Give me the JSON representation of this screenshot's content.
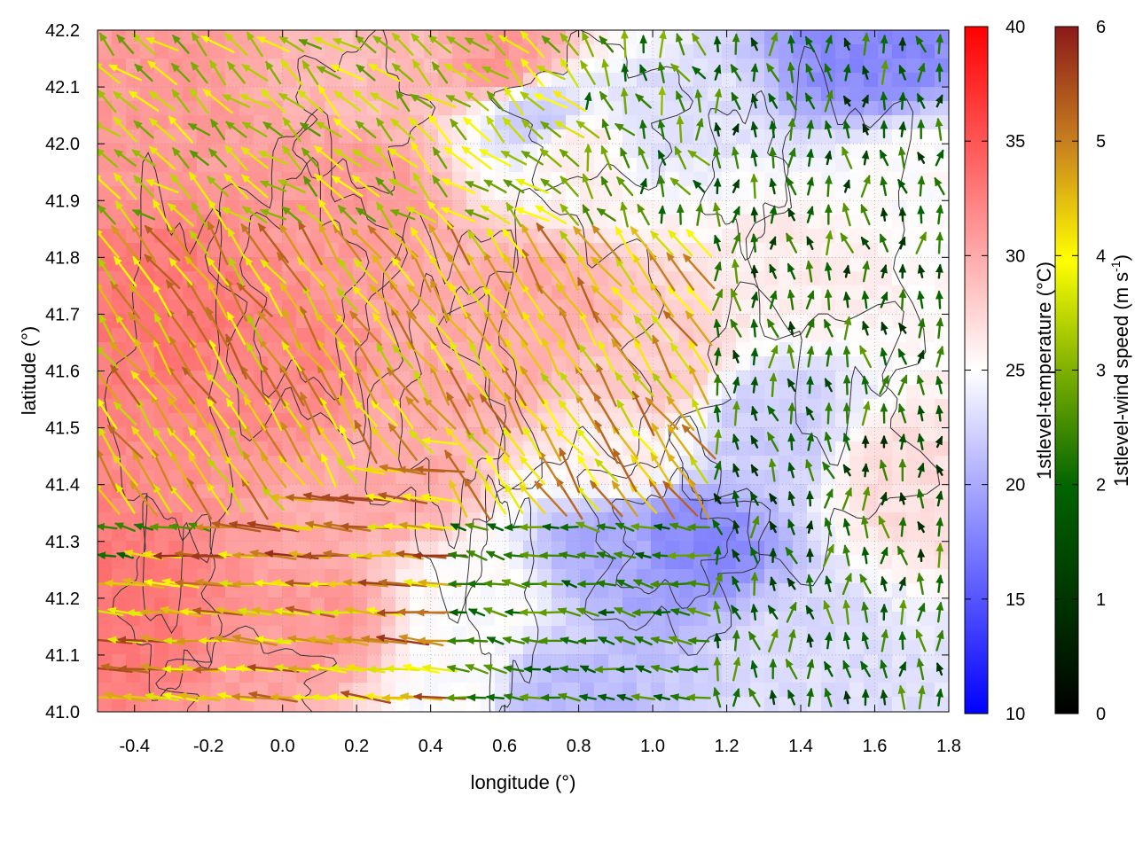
{
  "chart_data": {
    "type": "heatmap",
    "title": "",
    "xlabel": "longitude (°)",
    "ylabel": "latitude (°)",
    "xlim": [
      -0.5,
      1.8
    ],
    "ylim": [
      41.0,
      42.2
    ],
    "x_ticks": [
      "-0.4",
      "-0.2",
      "0.0",
      "0.2",
      "0.4",
      "0.6",
      "0.8",
      "1.0",
      "1.2",
      "1.4",
      "1.6",
      "1.8"
    ],
    "x_tick_values": [
      -0.4,
      -0.2,
      0.0,
      0.2,
      0.4,
      0.6,
      0.8,
      1.0,
      1.2,
      1.4,
      1.6,
      1.8
    ],
    "y_ticks": [
      "41.0",
      "41.1",
      "41.2",
      "41.3",
      "41.4",
      "41.5",
      "41.6",
      "41.7",
      "41.8",
      "41.9",
      "42.0",
      "42.1",
      "42.2"
    ],
    "y_tick_values": [
      41.0,
      41.1,
      41.2,
      41.3,
      41.4,
      41.5,
      41.6,
      41.7,
      41.8,
      41.9,
      42.0,
      42.1,
      42.2
    ],
    "grid": true,
    "layers": {
      "temperature_field": {
        "label": "1stlevel-temperature (°C)",
        "range": [
          10,
          40
        ],
        "ticks": [
          "10",
          "15",
          "20",
          "25",
          "30",
          "35",
          "40"
        ],
        "tick_values": [
          10,
          15,
          20,
          25,
          30,
          35,
          40
        ],
        "colors": [
          "#0000ff",
          "#ffffff",
          "#ff0000"
        ],
        "control_points": [
          {
            "lon": -0.45,
            "lat": 41.2,
            "temp": 33
          },
          {
            "lon": -0.3,
            "lat": 41.7,
            "temp": 33
          },
          {
            "lon": 0.0,
            "lat": 41.6,
            "temp": 32
          },
          {
            "lon": 0.2,
            "lat": 41.9,
            "temp": 31
          },
          {
            "lon": 0.5,
            "lat": 41.6,
            "temp": 30
          },
          {
            "lon": 0.7,
            "lat": 41.7,
            "temp": 30
          },
          {
            "lon": 0.6,
            "lat": 42.15,
            "temp": 31
          },
          {
            "lon": 0.8,
            "lat": 42.0,
            "temp": 26
          },
          {
            "lon": 1.0,
            "lat": 42.05,
            "temp": 23
          },
          {
            "lon": 0.7,
            "lat": 42.05,
            "temp": 22
          },
          {
            "lon": 1.6,
            "lat": 42.15,
            "temp": 18
          },
          {
            "lon": 1.7,
            "lat": 41.95,
            "temp": 25
          },
          {
            "lon": 1.4,
            "lat": 41.8,
            "temp": 26
          },
          {
            "lon": 1.3,
            "lat": 41.5,
            "temp": 22
          },
          {
            "lon": 1.1,
            "lat": 41.3,
            "temp": 18
          },
          {
            "lon": 0.9,
            "lat": 41.3,
            "temp": 20
          },
          {
            "lon": 0.5,
            "lat": 41.2,
            "temp": 25
          },
          {
            "lon": 0.45,
            "lat": 41.05,
            "temp": 25
          },
          {
            "lon": 0.75,
            "lat": 41.02,
            "temp": 21
          },
          {
            "lon": 1.4,
            "lat": 41.1,
            "temp": 23
          },
          {
            "lon": 1.7,
            "lat": 41.4,
            "temp": 27
          },
          {
            "lon": 1.0,
            "lat": 41.6,
            "temp": 28
          },
          {
            "lon": 0.9,
            "lat": 41.45,
            "temp": 26
          },
          {
            "lon": 0.3,
            "lat": 41.4,
            "temp": 30
          },
          {
            "lon": 0.1,
            "lat": 41.15,
            "temp": 31
          },
          {
            "lon": -0.4,
            "lat": 42.1,
            "temp": 31
          },
          {
            "lon": 0.3,
            "lat": 42.15,
            "temp": 29
          }
        ]
      },
      "wind_vectors": {
        "label": "1stlevel-wind speed (m s-1)",
        "label_prefix": "1stlevel-wind speed (m s",
        "label_superscript": "-1",
        "label_suffix": ")",
        "range": [
          0,
          6
        ],
        "ticks": [
          "0",
          "1",
          "2",
          "3",
          "4",
          "5",
          "6"
        ],
        "tick_values": [
          0,
          1,
          2,
          3,
          4,
          5,
          6
        ],
        "colors": [
          "#000000",
          "#006400",
          "#7fb000",
          "#ffff00",
          "#c8801e",
          "#8b1a1a"
        ],
        "grid_step_lon": 0.05,
        "grid_step_lat": 0.05,
        "regimes": [
          {
            "region": "southwest",
            "direction": "westward",
            "speed_range": [
              3,
              6
            ]
          },
          {
            "region": "central",
            "direction": "northwest",
            "speed_range": [
              3,
              5
            ]
          },
          {
            "region": "northwest",
            "direction": "northwest",
            "speed_range": [
              2,
              4
            ]
          },
          {
            "region": "east",
            "direction": "northward",
            "speed_range": [
              0.5,
              2
            ]
          },
          {
            "region": "south-central",
            "direction": "westward",
            "speed_range": [
              1,
              2
            ]
          }
        ]
      },
      "contours": {
        "color": "#333333",
        "description": "terrain elevation contour lines"
      }
    }
  }
}
